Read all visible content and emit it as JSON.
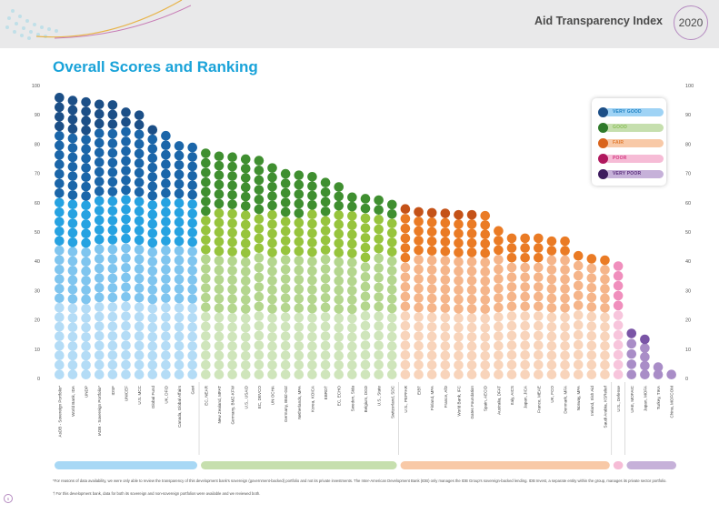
{
  "header": {
    "brand": "Aid Transparency Index",
    "year": "2020"
  },
  "page": {
    "title": "Overall Scores and Ranking",
    "footnote_1": "*For reasons of data availability, we were only able to review the transparency of this development bank's sovereign (government-backed) portfolio and not its private investments. The Inter-American Development Bank (IDB) only manages the IDB Group's sovereign-backed lending. IDB Invest, a separate entity within the group, manages its private sector portfolio.",
    "footnote_2": "† For this development bank, data for both its sovereign and non-sovereign portfolios were available and we reviewed both.",
    "page_number": "6"
  },
  "legend": {
    "items": [
      {
        "label": "VERY GOOD",
        "dot": "#1c4f87",
        "pill": "#9fd3f5",
        "text": "#1c7fc0"
      },
      {
        "label": "GOOD",
        "dot": "#2f7a2a",
        "pill": "#c6dfae",
        "text": "#8bbf5a"
      },
      {
        "label": "FAIR",
        "dot": "#d9641c",
        "pill": "#f8c9a7",
        "text": "#e07a2e"
      },
      {
        "label": "POOR",
        "dot": "#b0185e",
        "pill": "#f6bcd6",
        "text": "#d33a82"
      },
      {
        "label": "VERY POOR",
        "dot": "#3d1a5e",
        "pill": "#c6b1d9",
        "text": "#5a2d7c"
      }
    ]
  },
  "chart_data": {
    "type": "bar",
    "title": "Overall Scores and Ranking",
    "xlabel": "",
    "ylabel": "",
    "ylim": [
      0,
      100
    ],
    "yticks": [
      0,
      10,
      20,
      30,
      40,
      50,
      60,
      70,
      80,
      90,
      100
    ],
    "grid": false,
    "legend_position": "top-right",
    "categories": [
      "AsDB - Sovereign Portfolio*",
      "World Bank, IDA",
      "UNDP",
      "IADB - Sovereign Portfolio*",
      "IDSF",
      "UNICEF",
      "U.S. MCC",
      "Global Fund",
      "UK, DFID",
      "Canada, Global Affairs",
      "Gavi",
      "EC, NEAR",
      "New Zealand, MFAT",
      "Germany, BMZ-KFW",
      "U.S., USAID",
      "EC, DEVCO",
      "UN OCHA",
      "Germany, BMZ-GIZ",
      "Netherlands, MFA",
      "Korea, KOICA",
      "EBRD†",
      "EC, ECHO",
      "Sweden, Sida",
      "Belgium, DGD",
      "U.S., State",
      "Switzerland, SDC",
      "U.S., PEPFAR",
      "EIB†",
      "Finland, MFA",
      "France, AfD",
      "World Bank, IFC",
      "Gates Foundation",
      "Spain, AECID",
      "Australia, DFAT",
      "Italy, AICS",
      "Japan, JICA",
      "France, MEAE",
      "UK, FCO",
      "Denmark, MFA",
      "Norway, MFA",
      "Ireland, Irish Aid",
      "Saudi Arabia, KSRelief",
      "U.S., Defense",
      "UAE, MOFAIC",
      "Japan, MOFA",
      "Turkey, TIKA",
      "China, MOFCOM"
    ],
    "values": [
      97.5,
      96.5,
      96,
      95.2,
      95,
      92.5,
      91.5,
      86.5,
      84.5,
      81,
      80.5,
      78.5,
      77.5,
      77.2,
      76.5,
      76,
      73.5,
      71.5,
      71,
      70.5,
      68.5,
      67,
      63.5,
      63,
      62.5,
      61,
      59.5,
      58.5,
      58.2,
      58,
      57.5,
      57.5,
      57.2,
      52,
      49.5,
      49.5,
      49.5,
      48.5,
      48.5,
      43.5,
      42.5,
      42,
      40,
      17,
      15,
      5.5,
      1
    ],
    "series_category": [
      "very_good",
      "very_good",
      "very_good",
      "very_good",
      "very_good",
      "very_good",
      "very_good",
      "very_good",
      "very_good",
      "very_good",
      "very_good",
      "good",
      "good",
      "good",
      "good",
      "good",
      "good",
      "good",
      "good",
      "good",
      "good",
      "good",
      "good",
      "good",
      "good",
      "good",
      "fair",
      "fair",
      "fair",
      "fair",
      "fair",
      "fair",
      "fair",
      "fair",
      "fair",
      "fair",
      "fair",
      "fair",
      "fair",
      "fair",
      "fair",
      "fair",
      "poor",
      "very_poor",
      "very_poor",
      "very_poor",
      "very_poor"
    ],
    "band_colors": {
      "very_good": [
        "#b4dcf6",
        "#7fc5ef",
        "#26a2e1",
        "#1b66a9",
        "#1c4f87"
      ],
      "good": [
        "#cfe5bb",
        "#b4d68e",
        "#97c43d",
        "#3f8f30",
        "#2a6b24"
      ],
      "fair": [
        "#f8d4bb",
        "#f5b58a",
        "#ea7b25",
        "#c45218",
        "#a8431b"
      ],
      "poor": [
        "#f7c5dc",
        "#f08fbd",
        "#e04a93",
        "#b0185e",
        "#8e1048"
      ],
      "very_poor": [
        "#cfc1df",
        "#a98dc7",
        "#7a55a6",
        "#56307f",
        "#3d1a5e"
      ]
    },
    "category_bar_colors": {
      "very_good": "#a8d8f5",
      "good": "#c6dfae",
      "fair": "#f8c9a7",
      "poor": "#f6bcd6",
      "very_poor": "#c6b1d9"
    }
  }
}
